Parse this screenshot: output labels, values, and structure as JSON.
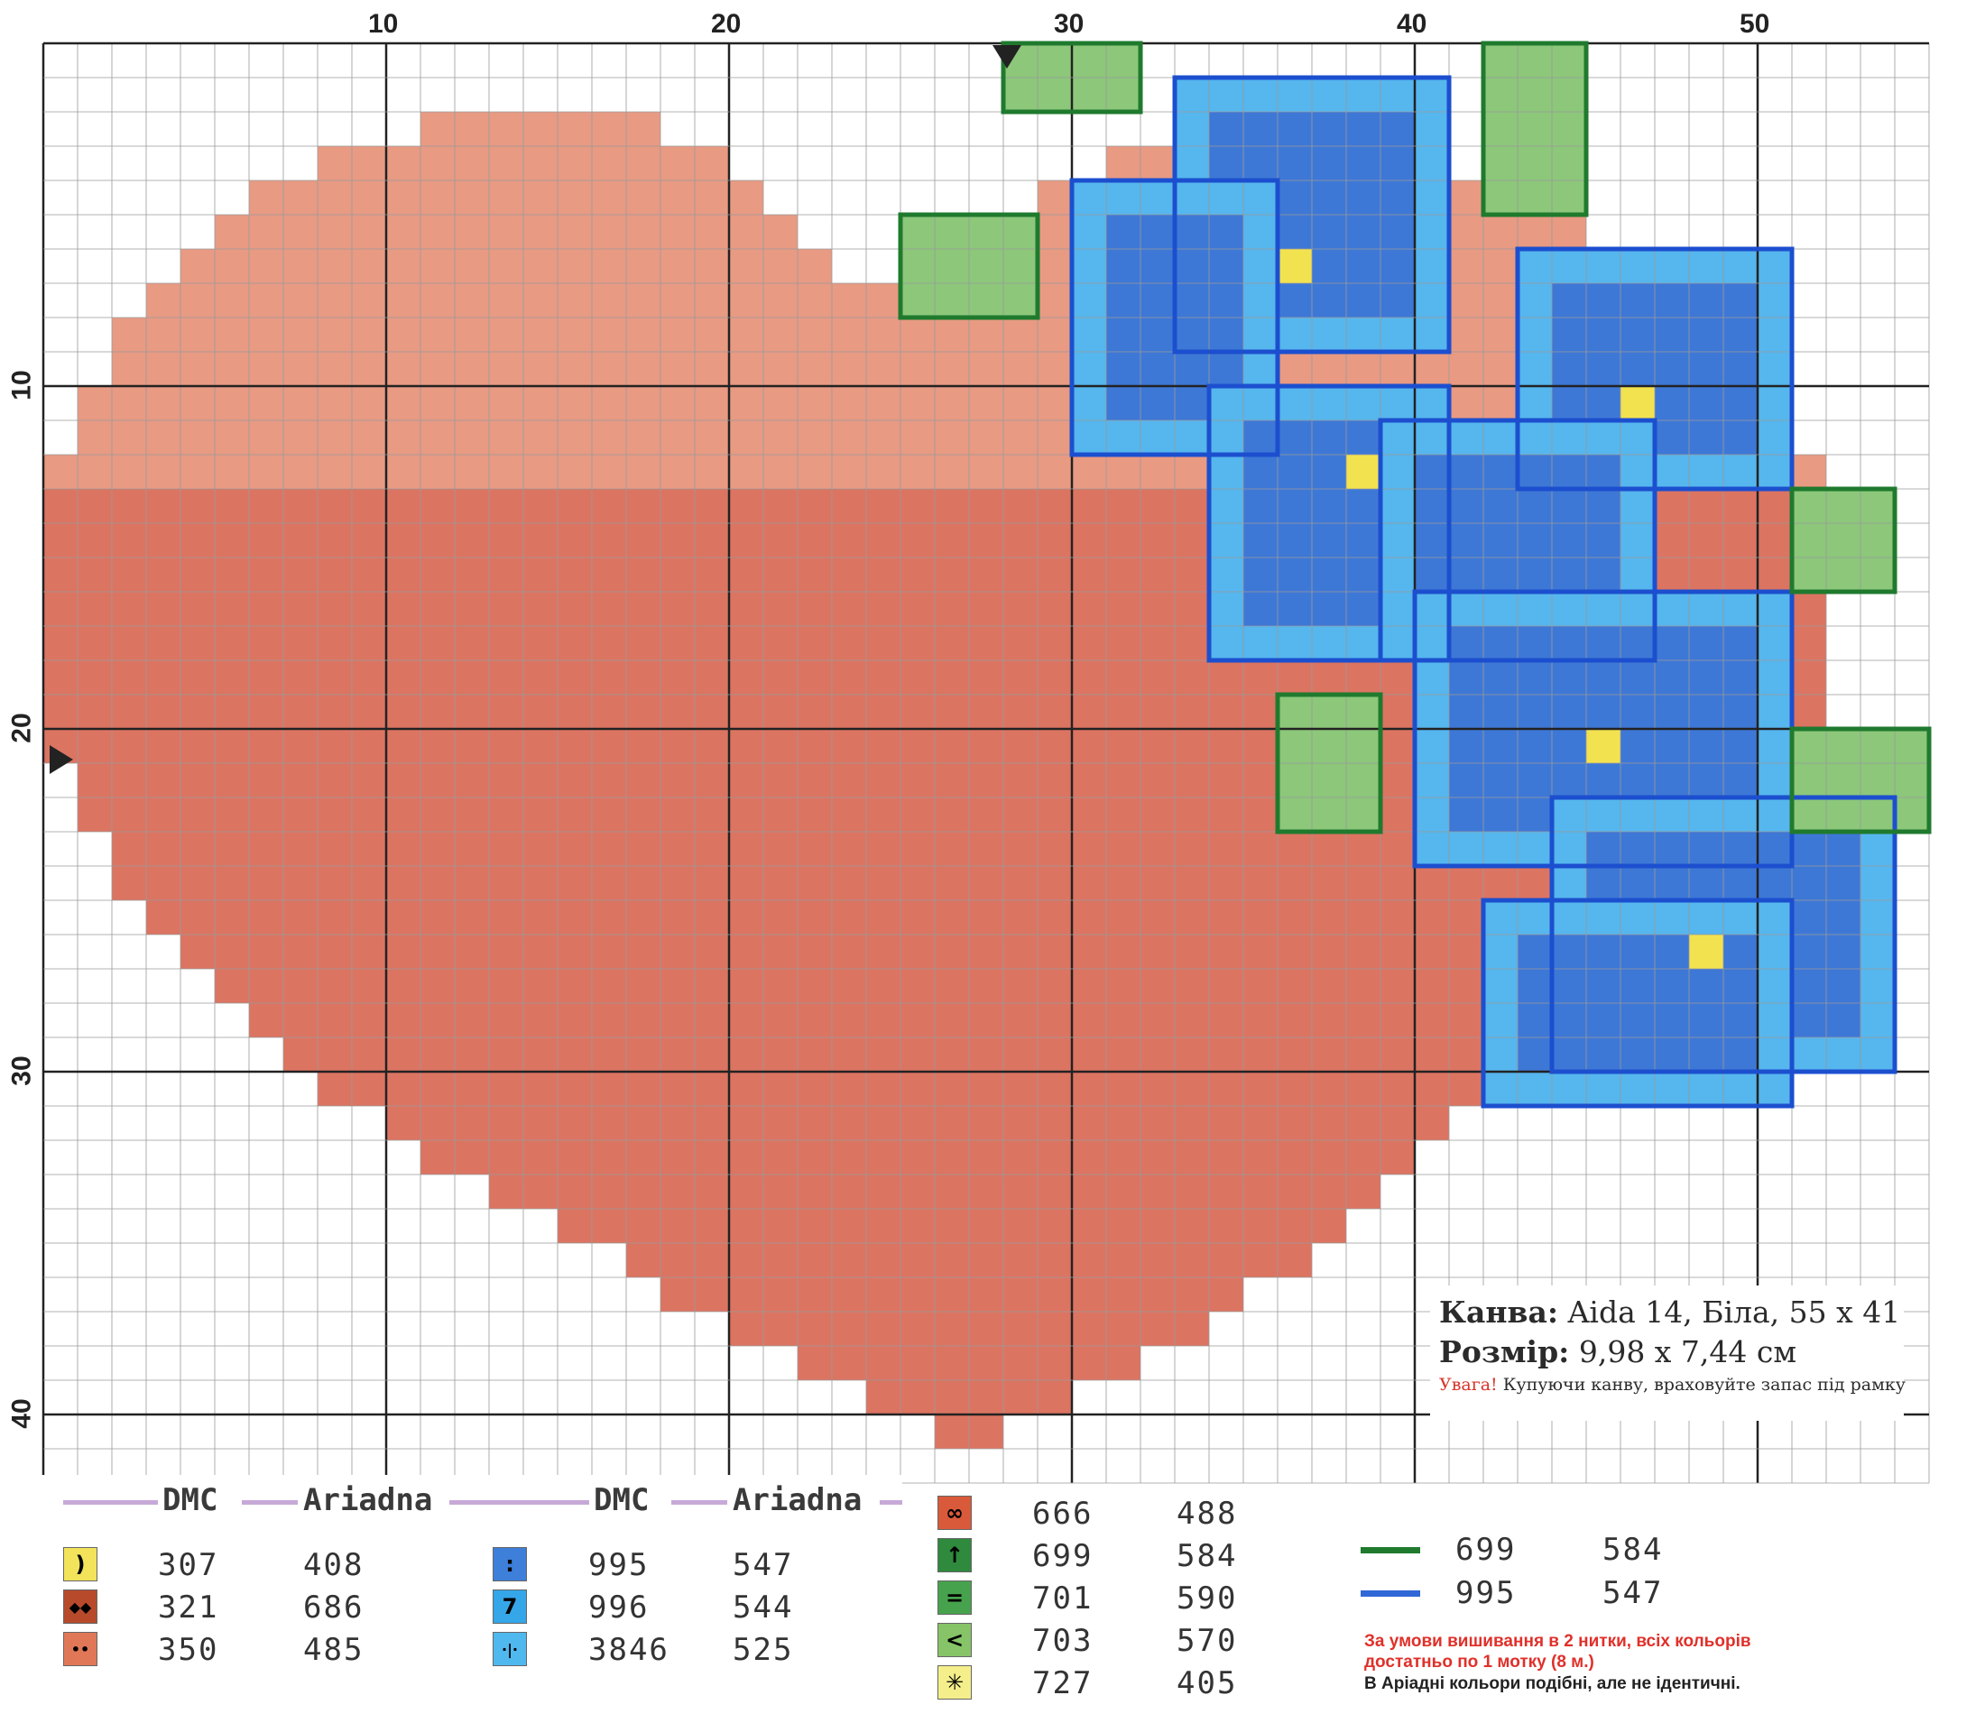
{
  "axis": {
    "top_numbers": [
      "10",
      "20",
      "30",
      "40",
      "50"
    ],
    "left_numbers": [
      "10",
      "20",
      "30",
      "40"
    ]
  },
  "info": {
    "canvas_label": "Канва:",
    "canvas_value": "Aida 14, Біла, 55 x 41",
    "size_label": "Розмір:",
    "size_value": "9,98 x 7,44 см",
    "warning_label": "Увага!",
    "warning_text": "Купуючи канву, враховуйте запас під рамку"
  },
  "legend": {
    "headers": [
      "DMC",
      "Ariadna",
      "DMC",
      "Ariadna"
    ],
    "columns": [
      [
        {
          "symbol": ")",
          "dmc": "307",
          "ariadna": "408",
          "color": "#f2e35a"
        },
        {
          "symbol": "◆◆",
          "dmc": "321",
          "ariadna": "686",
          "color": "#b84a2c"
        },
        {
          "symbol": "••",
          "dmc": "350",
          "ariadna": "485",
          "color": "#e07858"
        }
      ],
      [
        {
          "symbol": ":",
          "dmc": "995",
          "ariadna": "547",
          "color": "#3d7fd9"
        },
        {
          "symbol": "7",
          "dmc": "996",
          "ariadna": "544",
          "color": "#35a6e8"
        },
        {
          "symbol": "·|·",
          "dmc": "3846",
          "ariadna": "525",
          "color": "#4fb8ef"
        }
      ],
      [
        {
          "symbol": "∞",
          "dmc": "666",
          "ariadna": "488",
          "color": "#d95a3a"
        },
        {
          "symbol": "↑",
          "dmc": "699",
          "ariadna": "584",
          "color": "#2f8a3e"
        },
        {
          "symbol": "=",
          "dmc": "701",
          "ariadna": "590",
          "color": "#47a24d"
        },
        {
          "symbol": "<",
          "dmc": "703",
          "ariadna": "570",
          "color": "#86c467"
        },
        {
          "symbol": "✳",
          "dmc": "727",
          "ariadna": "405",
          "color": "#f4ef8a"
        }
      ]
    ],
    "backstitch": [
      {
        "dmc": "699",
        "ariadna": "584",
        "color": "#1f7a2e"
      },
      {
        "dmc": "995",
        "ariadna": "547",
        "color": "#2f67d6"
      }
    ],
    "note_red": "За умови вишивання в 2 нитки, всіх кольорів достатньо по 1 мотку (8 м.)",
    "note_black": "В Аріадні кольори подібні, але не ідентичні."
  },
  "colors": {
    "heart_base": "#dc7462",
    "heart_light": "#e89a83",
    "heart_dark": "#b14a35",
    "flower_blue": "#3e78d6",
    "flower_light": "#56b6ee",
    "flower_center": "#f2e24f",
    "leaf": "#8cc77a",
    "leaf_outline": "#1f7a2e",
    "flower_outline": "#1c4fcf"
  }
}
